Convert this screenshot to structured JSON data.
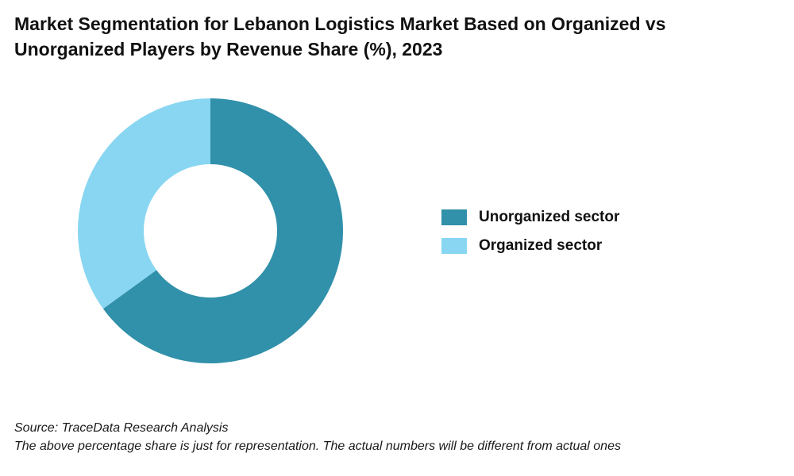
{
  "chart_data": {
    "type": "pie",
    "variant": "donut",
    "title": "Market Segmentation for Lebanon Logistics Market Based on Organized vs Unorganized Players by Revenue Share (%), 2023",
    "categories": [
      "Unorganized sector",
      "Organized sector"
    ],
    "values": [
      65,
      35
    ],
    "colors": [
      "#3190aa",
      "#88d6f1"
    ],
    "legend_position": "right",
    "start_angle_deg": 0,
    "direction": "clockwise"
  },
  "footnotes": {
    "source": "Source: TraceData Research Analysis",
    "disclaimer": "The above percentage share is just for representation. The actual numbers will be different from actual ones"
  }
}
